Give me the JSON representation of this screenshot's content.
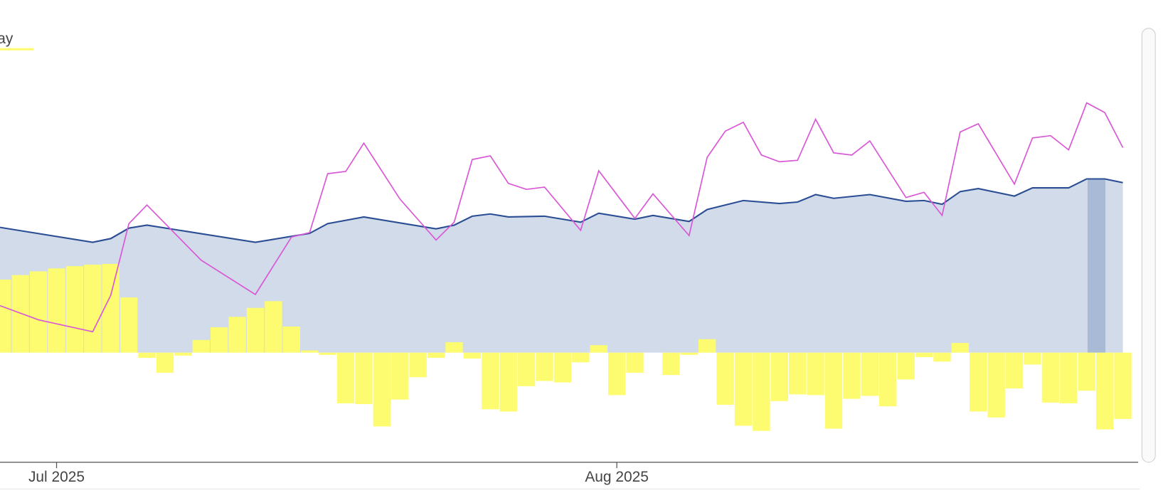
{
  "chart_data": {
    "type": "combo",
    "xlim": [
      -3.13,
      59.85
    ],
    "ylim": [
      -147,
      473
    ],
    "xticks": [
      {
        "value": 0,
        "label": "Jul 2025"
      },
      {
        "value": 31,
        "label": "Aug 2025"
      }
    ],
    "series": [
      {
        "type": "area",
        "color": "#2a4d94",
        "fill": "#d2dbea",
        "x": [
          -3.13,
          2,
          3,
          4,
          5,
          11,
          14,
          15,
          17,
          21,
          22,
          23,
          24,
          25,
          27,
          29,
          30,
          32,
          33,
          35,
          36,
          38,
          40,
          41,
          42,
          43,
          45,
          47,
          48,
          49,
          50,
          51,
          53,
          54,
          56,
          57,
          58,
          59
        ],
        "values": [
          168,
          148,
          153,
          167,
          171,
          148,
          160,
          173,
          182,
          166,
          171,
          183,
          186,
          182,
          183,
          175,
          187,
          179,
          184,
          176,
          192,
          204,
          200,
          202,
          212,
          207,
          212,
          203,
          204,
          199,
          216,
          220,
          210,
          221,
          221,
          233,
          233,
          228
        ]
      },
      {
        "type": "line",
        "color": "#d957d6",
        "x": [
          -3.13,
          -1,
          2,
          3,
          4,
          5,
          8,
          11,
          13,
          14,
          15,
          16,
          17,
          19,
          21,
          22,
          23,
          24,
          25,
          26,
          27,
          29,
          30,
          32,
          33,
          35,
          36,
          37,
          38,
          39,
          40,
          41,
          42,
          43,
          44,
          45,
          47,
          48,
          49,
          50,
          51,
          53,
          54,
          55,
          56,
          57,
          58,
          59
        ],
        "values": [
          63,
          44,
          28,
          77,
          173,
          198,
          124,
          78,
          155,
          161,
          240,
          243,
          281,
          206,
          151,
          175,
          259,
          264,
          227,
          219,
          222,
          164,
          244,
          180,
          213,
          157,
          262,
          297,
          309,
          265,
          256,
          258,
          313,
          268,
          265,
          284,
          208,
          215,
          184,
          296,
          307,
          226,
          288,
          291,
          272,
          335,
          322,
          275
        ]
      },
      {
        "type": "bar",
        "name": "lay",
        "color": "#fdfb6f",
        "x": [
          -3,
          -2,
          -1,
          0,
          1,
          2,
          3,
          4,
          5,
          6,
          7,
          8,
          9,
          10,
          11,
          12,
          13,
          14,
          15,
          16,
          17,
          18,
          19,
          20,
          21,
          22,
          23,
          24,
          25,
          26,
          27,
          28,
          29,
          30,
          31,
          32,
          33,
          34,
          35,
          36,
          37,
          38,
          39,
          40,
          41,
          42,
          43,
          44,
          45,
          46,
          47,
          48,
          49,
          50,
          51,
          52,
          53,
          54,
          55,
          56,
          57,
          58,
          59
        ],
        "values": [
          98,
          104,
          109,
          113,
          116,
          118,
          119,
          74,
          -7,
          -27,
          -4,
          17,
          34,
          48,
          60,
          69,
          35,
          3,
          -3,
          -68,
          -69,
          -99,
          -63,
          -33,
          -7,
          14,
          -8,
          -76,
          -79,
          -45,
          -38,
          -40,
          -13,
          10,
          -57,
          -27,
          0,
          -30,
          -3,
          18,
          -70,
          -98,
          -105,
          -65,
          -56,
          -57,
          -102,
          -62,
          -58,
          -72,
          -36,
          -6,
          -12,
          13,
          -79,
          -87,
          -48,
          -16,
          -67,
          -68,
          -51,
          -103,
          -89
        ]
      }
    ]
  }
}
